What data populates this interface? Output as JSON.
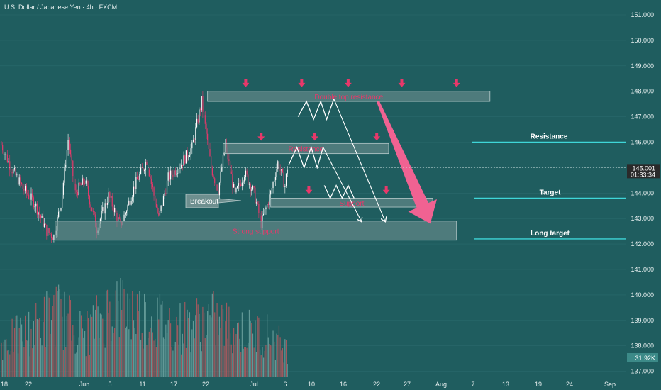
{
  "header": {
    "title": "U.S. Dollar / Japanese Yen · 4h · FXCM"
  },
  "colors": {
    "background": "#1f5d5f",
    "bull": "#ffffff",
    "bear": "#e8386a",
    "zone_fill": "#6e8f8f",
    "zone_stroke": "#b9cccc",
    "target_line": "#3fd6d8",
    "big_arrow": "#f06292",
    "volume_bull": "#6fa3a1",
    "volume_bear": "#b5585e"
  },
  "chart_data": {
    "type": "candlestick",
    "symbol": "U.S. Dollar / Japanese Yen",
    "interval": "4h",
    "source": "FXCM",
    "ylim": [
      136.8,
      151.2
    ],
    "y_ticks": [
      "151.000",
      "150.000",
      "149.000",
      "148.000",
      "147.000",
      "146.000",
      "145.000",
      "144.000",
      "143.000",
      "142.000",
      "141.000",
      "140.000",
      "139.000",
      "138.000",
      "137.000"
    ],
    "x_ticks": [
      "18",
      "22",
      "Jun",
      "5",
      "11",
      "17",
      "22",
      "Jul",
      "6",
      "10",
      "16",
      "22",
      "27",
      "Aug",
      "7",
      "13",
      "19",
      "24",
      "Sep"
    ],
    "price_path": [
      {
        "i": 0,
        "p": 145.9
      },
      {
        "i": 8,
        "p": 145.0
      },
      {
        "i": 18,
        "p": 144.2
      },
      {
        "i": 28,
        "p": 143.6
      },
      {
        "i": 38,
        "p": 142.5
      },
      {
        "i": 44,
        "p": 142.3
      },
      {
        "i": 50,
        "p": 143.6
      },
      {
        "i": 56,
        "p": 146.1
      },
      {
        "i": 62,
        "p": 144.0
      },
      {
        "i": 70,
        "p": 144.5
      },
      {
        "i": 80,
        "p": 142.6
      },
      {
        "i": 90,
        "p": 143.9
      },
      {
        "i": 100,
        "p": 142.7
      },
      {
        "i": 112,
        "p": 144.3
      },
      {
        "i": 122,
        "p": 145.3
      },
      {
        "i": 132,
        "p": 143.0
      },
      {
        "i": 140,
        "p": 144.6
      },
      {
        "i": 150,
        "p": 145.1
      },
      {
        "i": 160,
        "p": 145.8
      },
      {
        "i": 168,
        "p": 147.6
      },
      {
        "i": 176,
        "p": 145.0
      },
      {
        "i": 182,
        "p": 144.1
      },
      {
        "i": 188,
        "p": 145.9
      },
      {
        "i": 196,
        "p": 143.9
      },
      {
        "i": 204,
        "p": 144.8
      },
      {
        "i": 212,
        "p": 144.0
      },
      {
        "i": 218,
        "p": 142.8
      },
      {
        "i": 226,
        "p": 144.0
      },
      {
        "i": 232,
        "p": 145.2
      },
      {
        "i": 238,
        "p": 144.3
      },
      {
        "i": 240,
        "p": 145.0
      }
    ],
    "last_price": "145.001",
    "countdown": "01:33:34",
    "volume_label": "31.92K",
    "volume_points": [
      {
        "i": 0,
        "v": 0.45
      },
      {
        "i": 25,
        "v": 0.6
      },
      {
        "i": 45,
        "v": 0.85
      },
      {
        "i": 70,
        "v": 0.55
      },
      {
        "i": 95,
        "v": 0.95
      },
      {
        "i": 120,
        "v": 0.8
      },
      {
        "i": 150,
        "v": 0.65
      },
      {
        "i": 175,
        "v": 0.75
      },
      {
        "i": 200,
        "v": 0.6
      },
      {
        "i": 225,
        "v": 0.55
      },
      {
        "i": 240,
        "v": 0.35
      }
    ],
    "zones": [
      {
        "label": "Double top resistance",
        "top": 148.0,
        "bottom": 147.6,
        "t0": 173,
        "t1": 410
      },
      {
        "label": "Resistance",
        "top": 145.95,
        "bottom": 145.55,
        "t0": 186,
        "t1": 325
      },
      {
        "label": "Support",
        "top": 143.8,
        "bottom": 143.45,
        "t0": 226,
        "t1": 362
      },
      {
        "label": "Strong support",
        "top": 142.9,
        "bottom": 142.15,
        "t0": 45,
        "t1": 382
      }
    ],
    "horizontal_lines": [
      {
        "label": "Resistance",
        "price": 146.0
      },
      {
        "label": "Target",
        "price": 143.8
      },
      {
        "label": "Long target",
        "price": 142.2
      }
    ],
    "callouts": [
      {
        "label": "Breakout"
      }
    ],
    "down_markers": [
      {
        "t": 205,
        "price": 148.3
      },
      {
        "t": 252,
        "price": 148.3
      },
      {
        "t": 291,
        "price": 148.3
      },
      {
        "t": 336,
        "price": 148.3
      },
      {
        "t": 382,
        "price": 148.3
      },
      {
        "t": 218,
        "price": 146.2
      },
      {
        "t": 263,
        "price": 146.2
      },
      {
        "t": 315,
        "price": 146.2
      },
      {
        "t": 258,
        "price": 144.1
      },
      {
        "t": 323,
        "price": 144.1
      }
    ],
    "projections": [
      {
        "points": [
          [
            249,
            147.0
          ],
          [
            256,
            147.6
          ],
          [
            262,
            146.9
          ],
          [
            268,
            147.6
          ],
          [
            273,
            146.9
          ],
          [
            279,
            147.7
          ]
        ]
      },
      {
        "points": [
          [
            241,
            145.1
          ],
          [
            248,
            145.8
          ],
          [
            254,
            145.0
          ],
          [
            260,
            145.8
          ],
          [
            265,
            145.0
          ],
          [
            270,
            145.8
          ]
        ]
      },
      {
        "points": [
          [
            271,
            144.3
          ],
          [
            276,
            143.8
          ],
          [
            281,
            144.3
          ],
          [
            286,
            143.8
          ],
          [
            291,
            144.3
          ],
          [
            296,
            143.8
          ]
        ]
      }
    ],
    "projection_arrows": [
      {
        "from": [
          279,
          147.7
        ],
        "to": [
          322,
          142.9
        ]
      },
      {
        "from": [
          270,
          145.8
        ],
        "to": [
          302,
          142.9
        ]
      }
    ],
    "big_arrow": {
      "from": [
        316,
        147.6
      ],
      "to": [
        360,
        142.8
      ]
    }
  }
}
